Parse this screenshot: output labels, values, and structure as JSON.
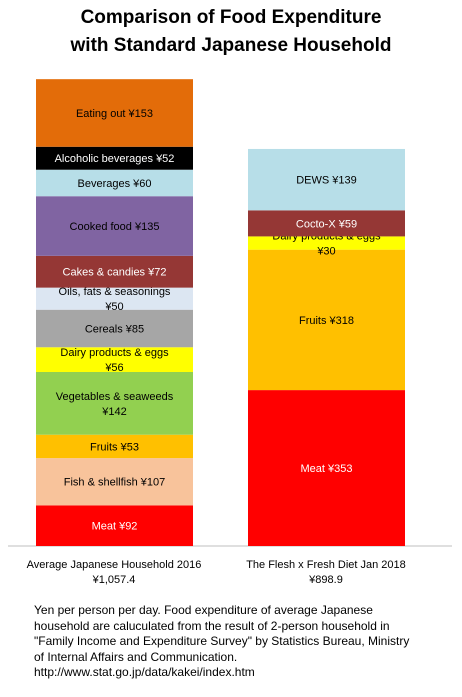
{
  "title": {
    "line1": "Comparison of Food Expenditure",
    "line2": "with Standard Japanese Household"
  },
  "chart_data": {
    "type": "bar",
    "stacked": true,
    "yunit": "Yen per person per day",
    "ylim": [
      0,
      1057.4
    ],
    "grid": false,
    "legend": "none",
    "categories": [
      {
        "label_line1": "Average Japanese Household 2016",
        "label_line2": "¥1,057.4",
        "total": 1057.4
      },
      {
        "label_line1": "The Flesh x Fresh Diet Jan 2018",
        "label_line2": "¥898.9",
        "total": 898.9
      }
    ],
    "stacks": [
      [
        {
          "name": "Meat",
          "value": 92,
          "label": [
            "Meat ¥92"
          ],
          "color": "#ff0000",
          "text_color": "#ffffff"
        },
        {
          "name": "Fish & shellfish",
          "value": 107,
          "label": [
            "Fish & shellfish ¥107"
          ],
          "color": "#f8c39b",
          "text_color": "#000000"
        },
        {
          "name": "Fruits",
          "value": 53,
          "label": [
            "Fruits ¥53"
          ],
          "color": "#ffc000",
          "text_color": "#000000"
        },
        {
          "name": "Vegetables & seaweeds",
          "value": 142,
          "label": [
            "Vegetables & seaweeds",
            "¥142"
          ],
          "color": "#92d050",
          "text_color": "#000000"
        },
        {
          "name": "Dairy products & eggs",
          "value": 56,
          "label": [
            "Dairy products & eggs",
            "¥56"
          ],
          "color": "#ffff00",
          "text_color": "#000000"
        },
        {
          "name": "Cereals",
          "value": 85,
          "label": [
            "Cereals ¥85"
          ],
          "color": "#a6a6a6",
          "text_color": "#000000"
        },
        {
          "name": "Oils, fats & seasonings",
          "value": 50,
          "label": [
            "Oils, fats  & seasonings",
            "¥50"
          ],
          "color": "#dce6f2",
          "text_color": "#000000"
        },
        {
          "name": "Cakes & candies",
          "value": 72,
          "label": [
            "Cakes & candies ¥72"
          ],
          "color": "#953735",
          "text_color": "#ffffff"
        },
        {
          "name": "Cooked food",
          "value": 135,
          "label": [
            "Cooked food ¥135"
          ],
          "color": "#8064a2",
          "text_color": "#000000"
        },
        {
          "name": "Beverages",
          "value": 60,
          "label": [
            "Beverages ¥60"
          ],
          "color": "#b7dee8",
          "text_color": "#000000"
        },
        {
          "name": "Alcoholic beverages",
          "value": 52,
          "label": [
            "Alcoholic beverages ¥52"
          ],
          "color": "#000000",
          "text_color": "#ffffff"
        },
        {
          "name": "Eating out",
          "value": 153,
          "label": [
            "Eating out ¥153"
          ],
          "color": "#e36c09",
          "text_color": "#000000"
        }
      ],
      [
        {
          "name": "Meat",
          "value": 353,
          "label": [
            "Meat ¥353"
          ],
          "color": "#ff0000",
          "text_color": "#ffffff"
        },
        {
          "name": "Fruits",
          "value": 318,
          "label": [
            "Fruits ¥318"
          ],
          "color": "#ffc000",
          "text_color": "#000000"
        },
        {
          "name": "Dairy products & eggs",
          "value": 30,
          "label": [
            "Dairy products & eggs",
            "¥30"
          ],
          "color": "#ffff00",
          "text_color": "#000000"
        },
        {
          "name": "Cocto-X",
          "value": 59,
          "label": [
            "Cocto-X ¥59"
          ],
          "color": "#953735",
          "text_color": "#ffffff"
        },
        {
          "name": "DEWS",
          "value": 139,
          "label": [
            "DEWS ¥139"
          ],
          "color": "#b7dee8",
          "text_color": "#000000"
        }
      ]
    ]
  },
  "note": {
    "line1": "Yen per person per day. Food expenditure of average Japanese",
    "line2": "household  are caluculated from  the result of 2-person household  in",
    "line3": "\"Family Income and Expenditure Survey\" by  Statistics Bureau, Ministry",
    "line4": "of Internal Affairs and Communication.",
    "line5": "http://www.stat.go.jp/data/kakei/index.htm"
  }
}
